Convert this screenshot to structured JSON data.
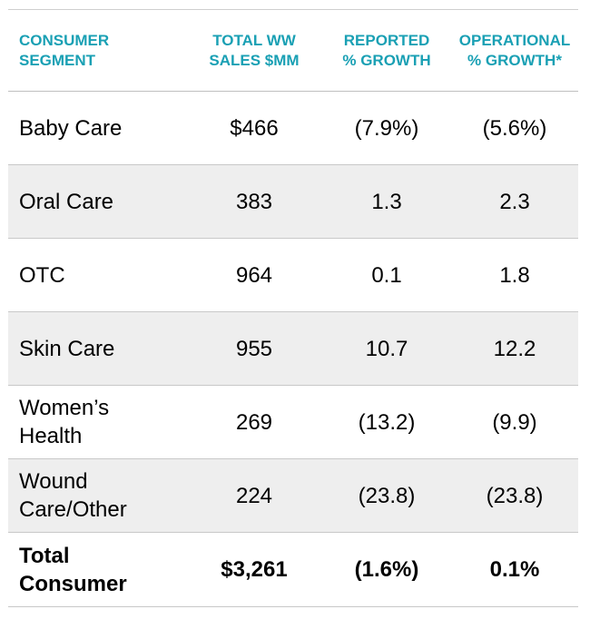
{
  "header": {
    "col1": [
      "CONSUMER",
      "SEGMENT"
    ],
    "col2": [
      "TOTAL WW",
      "SALES $MM"
    ],
    "col3": [
      "REPORTED",
      "% GROWTH"
    ],
    "col4": [
      "OPERATIONAL",
      "% GROWTH*"
    ]
  },
  "rows": [
    {
      "segment": [
        "Baby Care"
      ],
      "sales": "$466",
      "reported": "(7.9%)",
      "operational": "(5.6%)"
    },
    {
      "segment": [
        "Oral Care"
      ],
      "sales": "383",
      "reported": "1.3",
      "operational": "2.3"
    },
    {
      "segment": [
        "OTC"
      ],
      "sales": "964",
      "reported": "0.1",
      "operational": "1.8"
    },
    {
      "segment": [
        "Skin Care"
      ],
      "sales": "955",
      "reported": "10.7",
      "operational": "12.2"
    },
    {
      "segment": [
        "Women’s",
        "Health"
      ],
      "sales": "269",
      "reported": "(13.2)",
      "operational": "(9.9)"
    },
    {
      "segment": [
        "Wound",
        "Care/Other"
      ],
      "sales": "224",
      "reported": "(23.8)",
      "operational": "(23.8)"
    }
  ],
  "total": {
    "segment": [
      "Total",
      "Consumer"
    ],
    "sales": "$3,261",
    "reported": "(1.6%)",
    "operational": "0.1%"
  },
  "colors": {
    "header_text": "#1aa0b4",
    "row_shade": "#eeeeee"
  }
}
